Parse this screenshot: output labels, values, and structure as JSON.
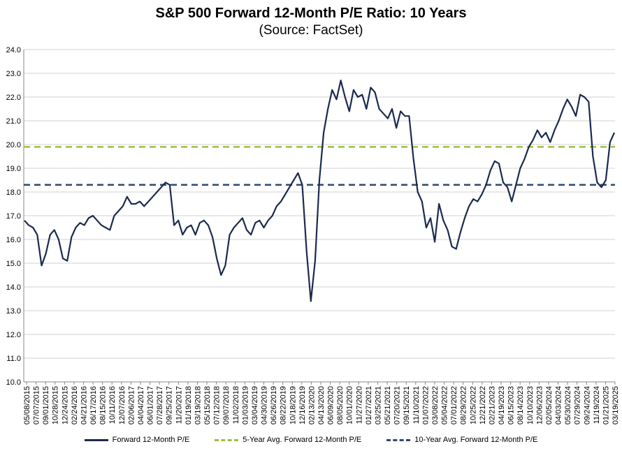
{
  "chart_data": {
    "type": "line",
    "title": "S&P 500 Forward 12-Month P/E Ratio: 10 Years",
    "subtitle": "(Source: FactSet)",
    "ylim": [
      10.0,
      24.0
    ],
    "yticks": [
      "10.0",
      "11.0",
      "12.0",
      "13.0",
      "14.0",
      "15.0",
      "16.0",
      "17.0",
      "18.0",
      "19.0",
      "20.0",
      "21.0",
      "22.0",
      "23.0",
      "24.0"
    ],
    "xticks": [
      "05/08/2015",
      "07/07/2015",
      "09/01/2015",
      "10/28/2015",
      "12/24/2015",
      "02/24/2016",
      "04/21/2016",
      "06/17/2016",
      "08/15/2016",
      "10/11/2016",
      "12/07/2016",
      "02/06/2017",
      "04/04/2017",
      "06/01/2017",
      "07/28/2017",
      "09/25/2017",
      "11/20/2017",
      "01/19/2018",
      "03/19/2018",
      "05/15/2018",
      "07/12/2018",
      "09/07/2018",
      "11/02/2018",
      "01/03/2019",
      "03/04/2019",
      "04/30/2019",
      "06/26/2019",
      "08/22/2019",
      "10/18/2019",
      "12/16/2019",
      "02/13/2020",
      "04/13/2020",
      "06/09/2020",
      "08/05/2020",
      "10/01/2020",
      "11/27/2020",
      "01/27/2021",
      "03/25/2021",
      "05/21/2021",
      "07/20/2021",
      "09/15/2021",
      "11/10/2021",
      "01/07/2022",
      "03/08/2022",
      "05/04/2022",
      "07/01/2022",
      "08/29/2022",
      "10/25/2022",
      "12/21/2022",
      "02/21/2023",
      "04/19/2023",
      "06/15/2023",
      "08/14/2023",
      "10/10/2023",
      "12/06/2023",
      "02/05/2024",
      "04/03/2024",
      "05/30/2024",
      "07/29/2024",
      "09/24/2024",
      "11/19/2024",
      "01/21/2025",
      "03/19/2025"
    ],
    "series": [
      {
        "name": "Forward 12-Month P/E",
        "color": "#1b2a4e",
        "values": [
          16.8,
          16.6,
          16.5,
          16.2,
          14.9,
          15.4,
          16.2,
          16.4,
          16.0,
          15.2,
          15.1,
          16.1,
          16.5,
          16.7,
          16.6,
          16.9,
          17.0,
          16.8,
          16.6,
          16.5,
          16.4,
          17.0,
          17.2,
          17.4,
          17.8,
          17.5,
          17.5,
          17.6,
          17.4,
          17.6,
          17.8,
          18.0,
          18.2,
          18.4,
          18.3,
          16.6,
          16.8,
          16.2,
          16.5,
          16.6,
          16.2,
          16.7,
          16.8,
          16.6,
          16.1,
          15.2,
          14.5,
          14.9,
          16.2,
          16.5,
          16.7,
          16.9,
          16.4,
          16.2,
          16.7,
          16.8,
          16.5,
          16.8,
          17.0,
          17.4,
          17.6,
          17.9,
          18.2,
          18.5,
          18.8,
          18.3,
          15.5,
          13.4,
          15.1,
          18.5,
          20.5,
          21.5,
          22.3,
          21.9,
          22.7,
          22.0,
          21.4,
          22.3,
          22.0,
          22.1,
          21.5,
          22.4,
          22.2,
          21.5,
          21.3,
          21.1,
          21.5,
          20.7,
          21.4,
          21.2,
          21.2,
          19.4,
          18.0,
          17.6,
          16.5,
          16.9,
          15.9,
          17.5,
          16.8,
          16.4,
          15.7,
          15.6,
          16.3,
          16.9,
          17.4,
          17.7,
          17.6,
          17.9,
          18.3,
          18.9,
          19.3,
          19.2,
          18.4,
          18.2,
          17.6,
          18.3,
          19.0,
          19.4,
          19.9,
          20.2,
          20.6,
          20.3,
          20.5,
          20.1,
          20.6,
          21.0,
          21.5,
          21.9,
          21.6,
          21.2,
          22.1,
          22.0,
          21.8,
          19.5,
          18.4,
          18.2,
          18.5,
          20.1,
          20.5
        ]
      },
      {
        "name": "5-Year Avg. Forward 12-Month P/E",
        "color": "#9dc13b",
        "value": 19.9
      },
      {
        "name": "10-Year Avg. Forward 12-Month P/E",
        "color": "#2d4b6e",
        "value": 18.3
      }
    ]
  }
}
